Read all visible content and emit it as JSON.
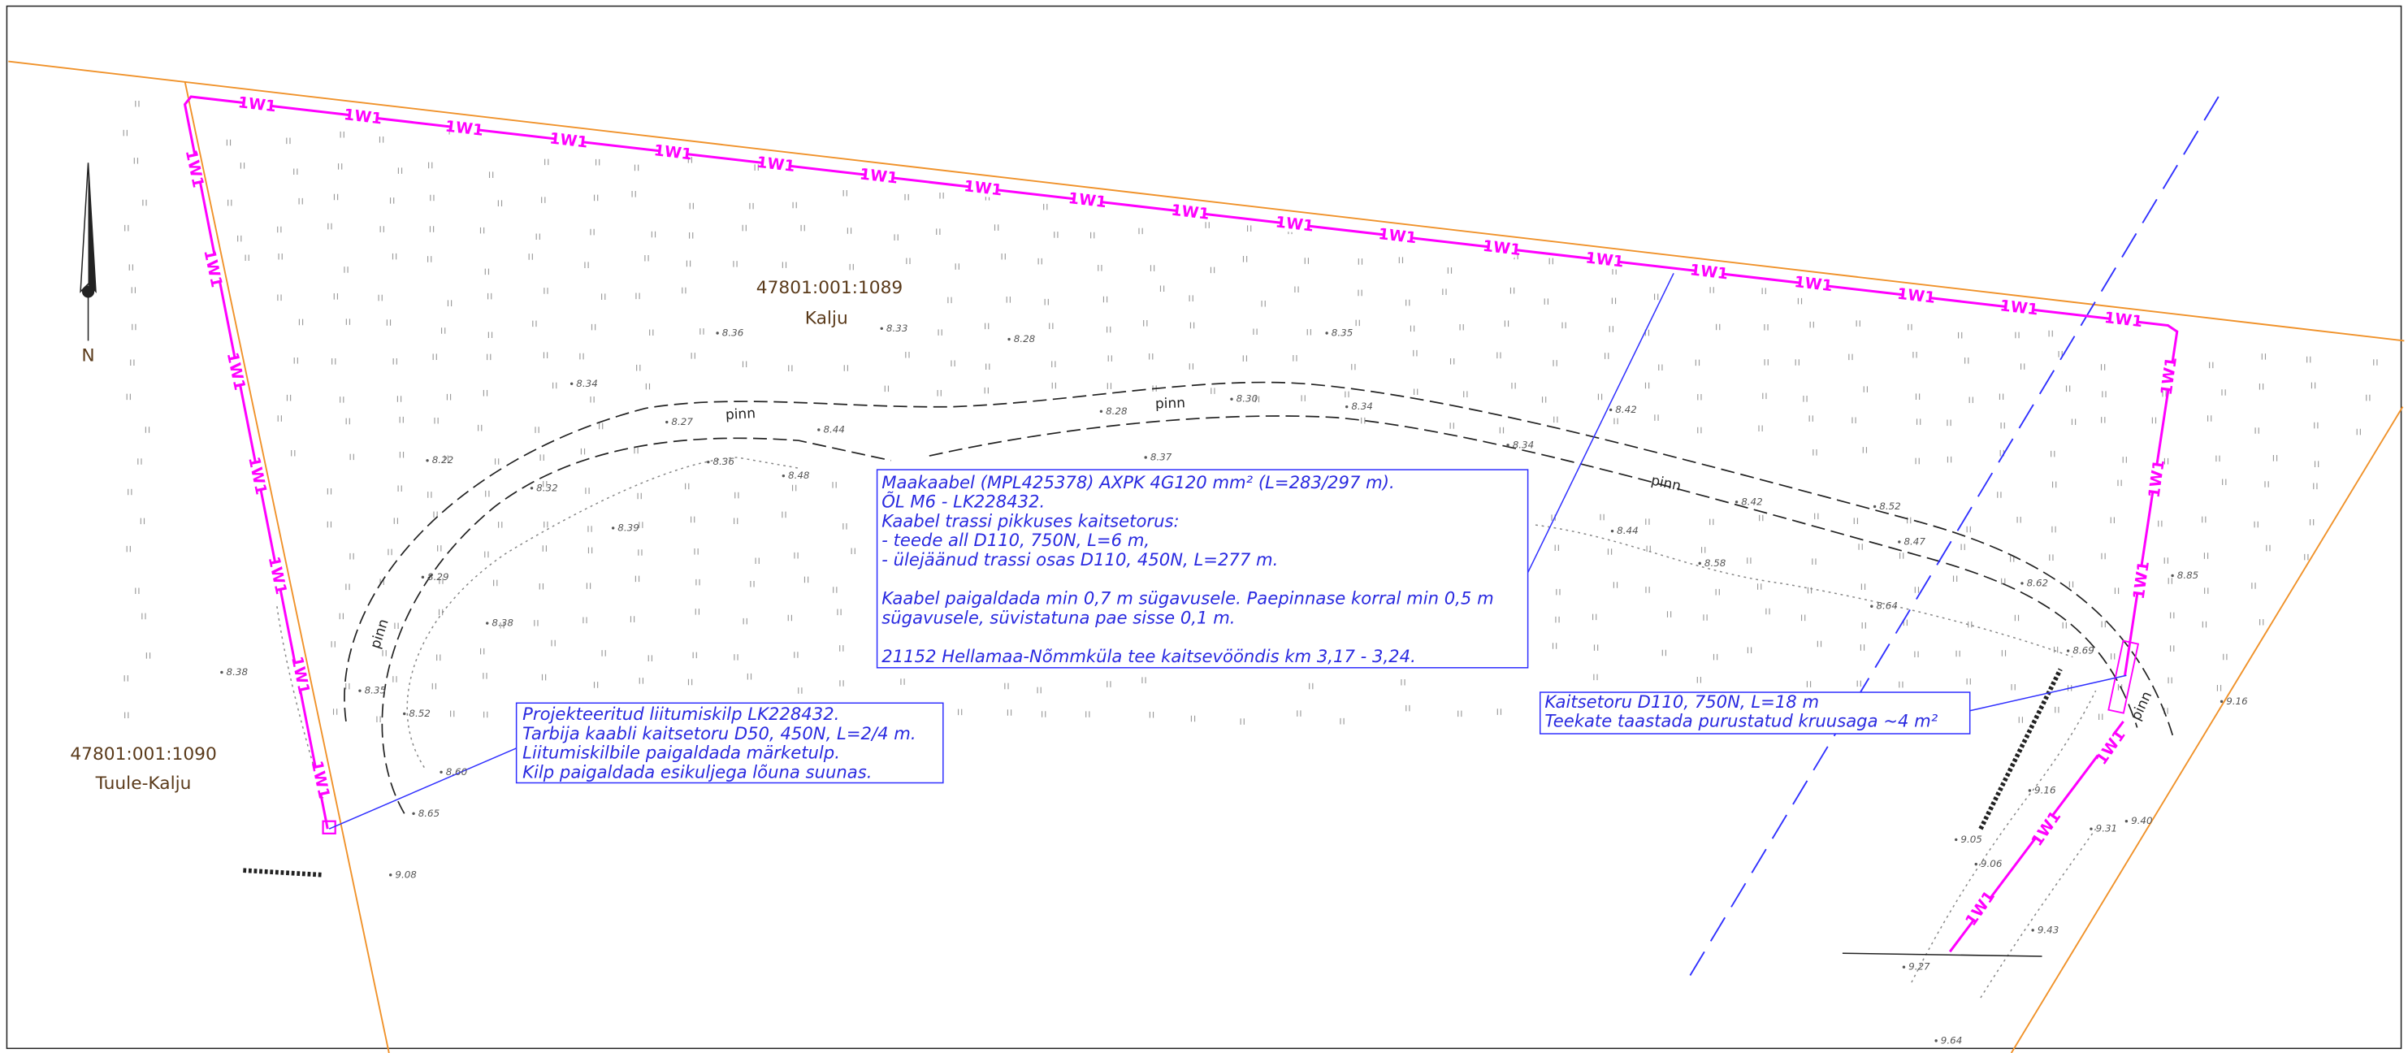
{
  "parcels": [
    {
      "id": "47801:001:1089",
      "name": "Kalju"
    },
    {
      "id": "47801:001:1090",
      "name": "Tuule-Kalju"
    }
  ],
  "north_label": "N",
  "cable_labels": [
    "1W1",
    "1W1",
    "1W1",
    "1W1",
    "1W1",
    "1W1",
    "1W1",
    "1W1",
    "1W1",
    "1W1",
    "1W1",
    "1W1",
    "1W1",
    "1W1",
    "1W1",
    "1W1",
    "1W1",
    "1W1",
    "1W1",
    "1W1",
    "1W1",
    "1W1",
    "1W1",
    "1W1",
    "1W1",
    "1W1",
    "1W1",
    "1W1",
    "1W1",
    "1W1",
    "1W1",
    "1W1"
  ],
  "road_labels": [
    "pinn",
    "pinn",
    "pinn",
    "pinn",
    "pinn"
  ],
  "elevations": [
    "8.36",
    "8.33",
    "8.28",
    "8.35",
    "8.34",
    "8.27",
    "8.44",
    "8.28",
    "8.30",
    "8.34",
    "8.42",
    "8.22",
    "8.37",
    "8.36",
    "8.48",
    "8.34",
    "8.32",
    "8.42",
    "8.52",
    "8.39",
    "8.44",
    "8.47",
    "8.58",
    "8.62",
    "8.85",
    "8.29",
    "8.64",
    "8.38",
    "8.38",
    "8.35",
    "8.52",
    "8.69",
    "9.16",
    "8.60",
    "8.65",
    "9.16",
    "9.40",
    "9.05",
    "9.31",
    "9.06",
    "9.08",
    "9.43",
    "9.27",
    "9.64"
  ],
  "annotations": [
    {
      "paragraphs": [
        [
          "Maakaabel (MPL425378) AXPK 4G120 mm² (L=283/297 m).",
          "ÕL M6 - LK228432.",
          "Kaabel trassi pikkuses kaitsetorus:",
          "- teede all D110, 750N, L=6 m,",
          "- ülejäänud trassi osas D110, 450N, L=277 m."
        ],
        [
          "Kaabel paigaldada min 0,7 m sügavusele. Paepinnase korral min 0,5 m",
          "sügavusele, süvistatuna pae sisse 0,1 m."
        ],
        [
          "21152 Hellamaa-Nõmmküla tee kaitsevööndis km 3,17 - 3,24."
        ]
      ]
    },
    {
      "paragraphs": [
        [
          "Projekteeritud liitumiskilp LK228432.",
          "Tarbija kaabli kaitsetoru D50, 450N, L=2/4 m.",
          "Liitumiskilbile paigaldada märketulp.",
          "Kilp paigaldada esikuljega lõuna suunas."
        ]
      ]
    },
    {
      "paragraphs": [
        [
          "Kaitsetoru D110, 750N, L=18 m",
          "Teekate taastada purustatud kruusaga ~4 m²"
        ]
      ]
    }
  ]
}
